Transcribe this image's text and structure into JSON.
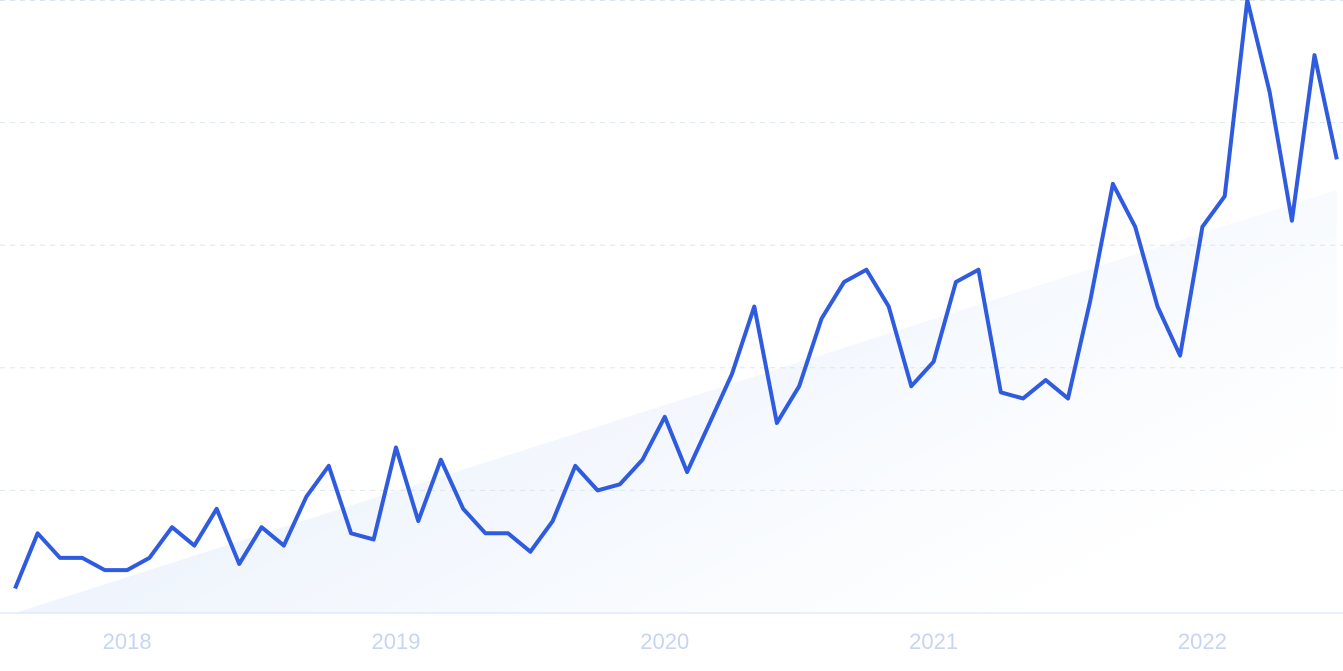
{
  "chart_data": {
    "type": "line",
    "x": [
      2017.583,
      2017.667,
      2017.75,
      2017.833,
      2017.917,
      2018,
      2018.083,
      2018.167,
      2018.25,
      2018.333,
      2018.417,
      2018.5,
      2018.583,
      2018.667,
      2018.75,
      2018.833,
      2018.917,
      2019,
      2019.083,
      2019.167,
      2019.25,
      2019.333,
      2019.417,
      2019.5,
      2019.583,
      2019.667,
      2019.75,
      2019.833,
      2019.917,
      2020,
      2020.083,
      2020.167,
      2020.25,
      2020.333,
      2020.417,
      2020.5,
      2020.583,
      2020.667,
      2020.75,
      2020.833,
      2020.917,
      2021,
      2021.083,
      2021.167,
      2021.25,
      2021.333,
      2021.417,
      2021.5,
      2021.583,
      2021.667,
      2021.75,
      2021.833,
      2021.917,
      2022,
      2022.083,
      2022.167,
      2022.25,
      2022.333,
      2022.417,
      2022.5
    ],
    "series": [
      {
        "color": "#2f5bdf",
        "values": [
          4,
          13,
          9,
          9,
          7,
          7,
          9,
          14,
          11,
          17,
          8,
          14,
          11,
          19,
          24,
          13,
          12,
          27,
          15,
          25,
          17,
          13,
          13,
          10,
          15,
          24,
          20,
          21,
          25,
          32,
          23,
          31,
          39,
          50,
          31,
          37,
          48,
          54,
          56,
          50,
          37,
          41,
          54,
          56,
          36,
          35,
          38,
          35,
          51,
          70,
          63,
          50,
          42,
          63,
          68,
          100,
          85,
          64,
          91,
          74
        ]
      }
    ],
    "trend": {
      "values": [
        0,
        69
      ]
    },
    "xlim": [
      2017.527,
      2022.523
    ],
    "xticks": [
      2018,
      2019,
      2020,
      2021,
      2022
    ],
    "ylim": [
      0,
      100
    ],
    "yticks": [
      0,
      20,
      40,
      60,
      80,
      100
    ],
    "grid": true
  }
}
